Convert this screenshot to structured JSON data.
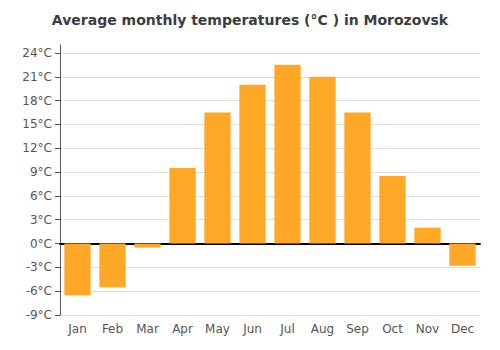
{
  "chart_data": {
    "type": "bar",
    "title": "Average monthly temperatures (°C ) in Morozovsk",
    "categories": [
      "Jan",
      "Feb",
      "Mar",
      "Apr",
      "May",
      "Jun",
      "Jul",
      "Aug",
      "Sep",
      "Oct",
      "Nov",
      "Dec"
    ],
    "values": [
      -6.5,
      -5.5,
      -0.5,
      9.5,
      16.5,
      20.0,
      22.5,
      21.0,
      16.5,
      8.5,
      2.0,
      -2.8
    ],
    "color": "#FFA726",
    "ylim": [
      -9,
      25
    ],
    "yticks": [
      {
        "value": -9,
        "label": "-9°C"
      },
      {
        "value": -6,
        "label": "-6°C"
      },
      {
        "value": -3,
        "label": "-3°C"
      },
      {
        "value": 0,
        "label": "0°C"
      },
      {
        "value": 3,
        "label": "3°C"
      },
      {
        "value": 6,
        "label": "6°C"
      },
      {
        "value": 9,
        "label": "9°C"
      },
      {
        "value": 12,
        "label": "12°C"
      },
      {
        "value": 15,
        "label": "15°C"
      },
      {
        "value": 18,
        "label": "18°C"
      },
      {
        "value": 21,
        "label": "21°C"
      },
      {
        "value": 24,
        "label": "24°C"
      }
    ],
    "grid": true
  }
}
